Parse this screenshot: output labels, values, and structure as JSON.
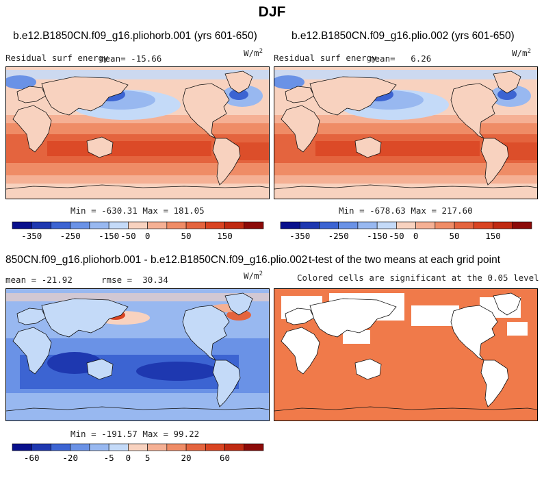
{
  "page": {
    "title": "DJF"
  },
  "palette": {
    "seasonal": [
      "#08108c",
      "#1e38b0",
      "#3c64d2",
      "#6a92e6",
      "#98b8f0",
      "#c4daf8",
      "#f8d2bf",
      "#f5b094",
      "#ef8c66",
      "#e4643e",
      "#d94422",
      "#c02a12",
      "#8c0a08"
    ],
    "difference": [
      "#08108c",
      "#1e38b0",
      "#3c64d2",
      "#6a92e6",
      "#98b8f0",
      "#c4daf8",
      "#f8d2bf",
      "#f5b094",
      "#ef8c66",
      "#e4643e",
      "#d94422",
      "#c02a12",
      "#8c0a08"
    ],
    "significance": "#f07a4a",
    "coastline": "#111111"
  },
  "panels": [
    {
      "title": "b.e12.B1850CN.f09_g16.pliohorb.001 (yrs 601-650)",
      "variable": "Residual surf energy",
      "mean_label": "mean=",
      "mean_value": "-15.66",
      "units": "W/m",
      "units_sup": "2",
      "stats": "Min = -630.31 Max = 181.05"
    },
    {
      "title": "b.e12.B1850CN.f09_g16.plio.002 (yrs 601-650)",
      "variable": "Residual surf energy",
      "mean_label": "mean=",
      "mean_value": "6.26",
      "units": "W/m",
      "units_sup": "2",
      "stats": "Min = -678.63 Max = 217.60"
    },
    {
      "title": "850CN.f09_g16.pliohorb.001 - b.e12.B1850CN.f09_g16.plio.002",
      "mean_label": "mean =",
      "mean_value": "-21.92",
      "rmse_label": "rmse =",
      "rmse_value": "30.34",
      "units": "W/m",
      "units_sup": "2",
      "stats": "Min = -191.57 Max = 99.22"
    },
    {
      "title": "t-test of the two means at each grid point",
      "subtitle": "Colored cells are significant at the 0.05 level"
    }
  ],
  "chart_data": [
    {
      "type": "heatmap",
      "title": "b.e12.B1850CN.f09_g16.pliohorb.001 (yrs 601-650)",
      "variable": "Residual surf energy",
      "units": "W/m^2",
      "mean": -15.66,
      "min": -630.31,
      "max": 181.05,
      "colorbar_ticks": [
        -350,
        -250,
        -150,
        -50,
        0,
        50,
        150
      ],
      "colorbar_tick_labels": [
        "-350",
        "-250",
        "-150",
        "-50",
        "0",
        "50",
        "150"
      ],
      "colorbar_bins": 13
    },
    {
      "type": "heatmap",
      "title": "b.e12.B1850CN.f09_g16.plio.002 (yrs 601-650)",
      "variable": "Residual surf energy",
      "units": "W/m^2",
      "mean": 6.26,
      "min": -678.63,
      "max": 217.6,
      "colorbar_ticks": [
        -350,
        -250,
        -150,
        -50,
        0,
        50,
        150
      ],
      "colorbar_tick_labels": [
        "-350",
        "-250",
        "-150",
        "-50",
        "0",
        "50",
        "150"
      ],
      "colorbar_bins": 13
    },
    {
      "type": "heatmap",
      "title": "850CN.f09_g16.pliohorb.001 - b.e12.B1850CN.f09_g16.plio.002",
      "units": "W/m^2",
      "mean": -21.92,
      "rmse": 30.34,
      "min": -191.57,
      "max": 99.22,
      "colorbar_ticks": [
        -60,
        -20,
        -5,
        0,
        5,
        20,
        60
      ],
      "colorbar_tick_labels": [
        "-60",
        "-20",
        "-5",
        "0",
        "5",
        "20",
        "60"
      ],
      "colorbar_bins": 13
    },
    {
      "type": "heatmap",
      "title": "t-test of the two means at each grid point",
      "subtitle": "Colored cells are significant at the 0.05 level",
      "significance_level": 0.05
    }
  ]
}
